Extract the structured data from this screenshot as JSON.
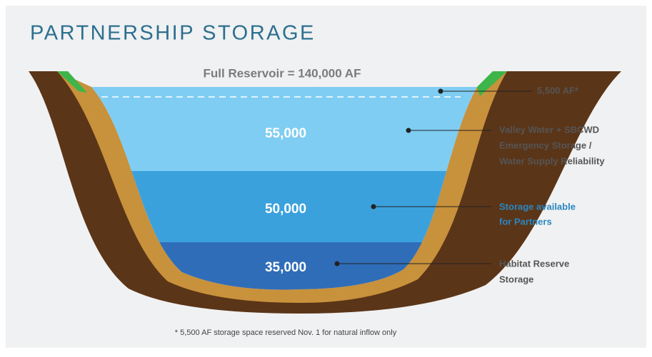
{
  "title": "PARTNERSHIP STORAGE",
  "full_reservoir": "Full Reservoir = 140,000 AF",
  "reserved": {
    "label": "5,500 AF*"
  },
  "layers": [
    {
      "amount": "55,000",
      "label_lines": [
        "Valley Water + SBCWD",
        "Emergency Storage /",
        "Water Supply Reliability"
      ]
    },
    {
      "amount": "50,000",
      "label_lines": [
        "Storage available",
        "for Partners"
      ]
    },
    {
      "amount": "35,000",
      "label_lines": [
        "Habitat Reserve",
        "Storage"
      ]
    }
  ],
  "footnote": "* 5,500 AF storage space reserved Nov. 1 for natural inflow only"
}
